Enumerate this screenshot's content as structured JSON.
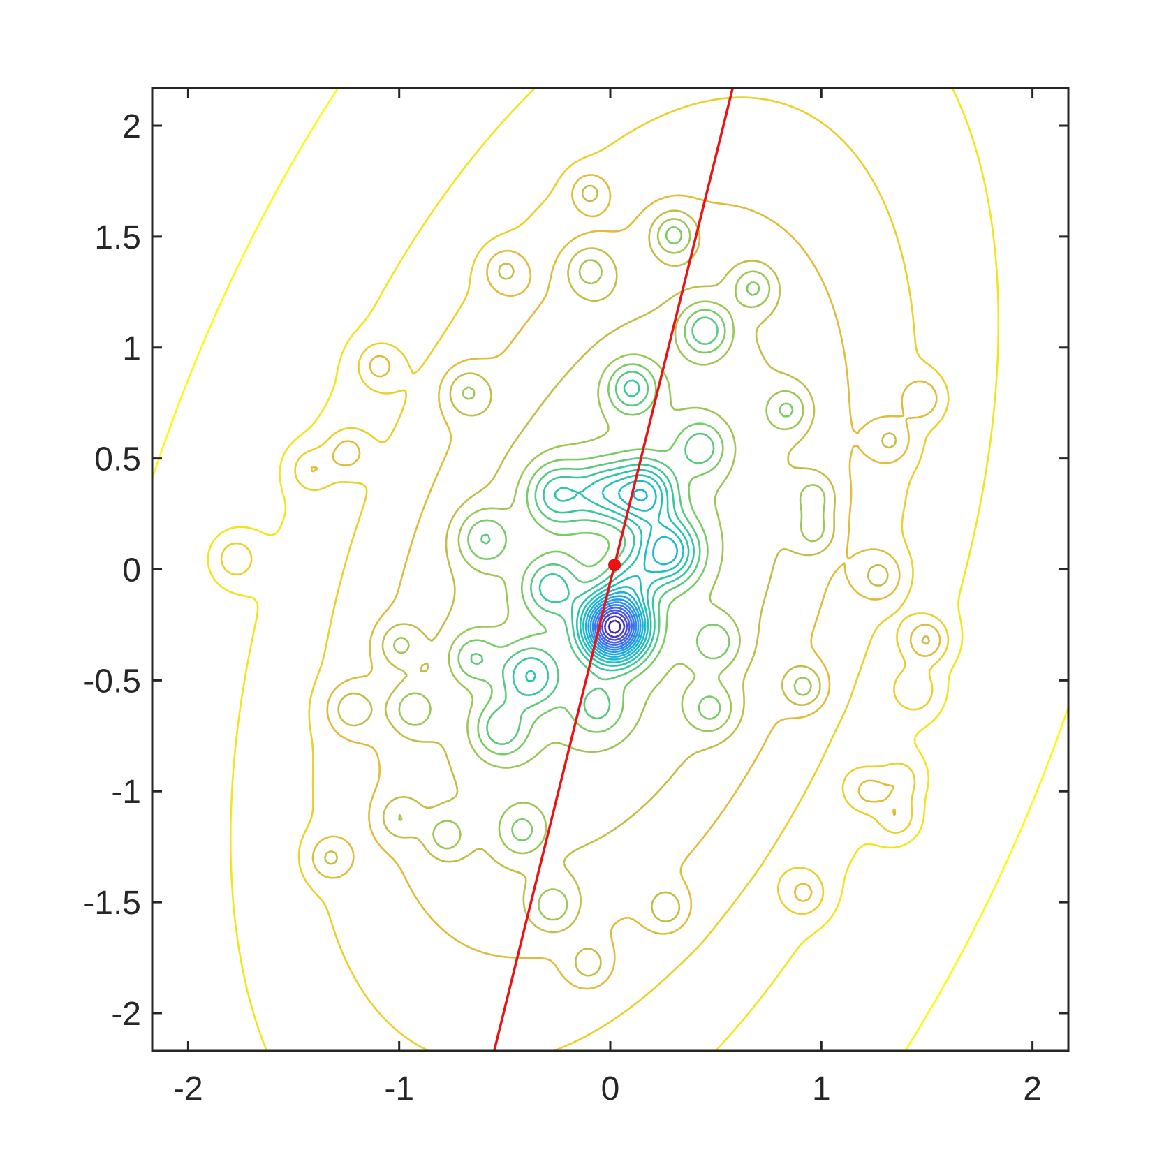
{
  "chart_data": {
    "type": "contour",
    "title": "",
    "xlabel": "",
    "ylabel": "",
    "xlim": [
      -2.17,
      2.17
    ],
    "ylim": [
      -2.17,
      2.17
    ],
    "xticks": [
      -2,
      -1,
      0,
      1,
      2
    ],
    "yticks": [
      -2,
      -1.5,
      -1,
      -0.5,
      0,
      0.5,
      1,
      1.5,
      2
    ],
    "xtick_labels": [
      "-2",
      "-1",
      "0",
      "1",
      "2"
    ],
    "ytick_labels": [
      "-2",
      "-1.5",
      "-1",
      "-0.5",
      "0",
      "0.5",
      "1",
      "1.5",
      "2"
    ],
    "grid": false,
    "colormap": "parula",
    "colors": {
      "low": "#3e26a8",
      "mid": "#2ab6a2",
      "high": "#f9fb0e",
      "line": "#ee1111"
    },
    "background_gaussian": {
      "center": [
        0.02,
        -0.05
      ],
      "sx": 1.05,
      "sy": 1.6,
      "rho": 0.42,
      "amp": 1.0
    },
    "wells": [
      [
        0.02,
        -0.26,
        2.8,
        0.1
      ],
      [
        0.16,
        0.34,
        1.1,
        0.1
      ],
      [
        0.27,
        0.08,
        1.1,
        0.1
      ],
      [
        -0.25,
        0.34,
        0.7,
        0.1
      ],
      [
        -0.03,
        0.35,
        0.6,
        0.09
      ],
      [
        -0.28,
        -0.08,
        0.6,
        0.09
      ],
      [
        -0.38,
        -0.48,
        0.7,
        0.1
      ],
      [
        -0.52,
        -0.72,
        0.55,
        0.09
      ],
      [
        -0.6,
        0.14,
        0.5,
        0.09
      ],
      [
        -0.65,
        -0.4,
        0.45,
        0.08
      ],
      [
        0.1,
        -0.05,
        0.5,
        0.08
      ],
      [
        0.43,
        0.55,
        0.5,
        0.08
      ],
      [
        -0.06,
        -0.62,
        0.4,
        0.09
      ],
      [
        0.5,
        -0.33,
        0.4,
        0.08
      ],
      [
        0.1,
        0.82,
        0.65,
        0.08
      ],
      [
        0.3,
        1.51,
        0.55,
        0.07
      ],
      [
        0.45,
        1.08,
        0.65,
        0.08
      ],
      [
        0.68,
        1.27,
        0.45,
        0.07
      ],
      [
        0.84,
        0.72,
        0.4,
        0.07
      ],
      [
        0.92,
        -0.53,
        0.45,
        0.07
      ],
      [
        0.48,
        -0.63,
        0.4,
        0.08
      ],
      [
        -0.1,
        1.7,
        0.35,
        0.06
      ],
      [
        -0.5,
        1.35,
        0.35,
        0.07
      ],
      [
        -0.1,
        1.35,
        0.4,
        0.08
      ],
      [
        -0.68,
        0.8,
        0.4,
        0.08
      ],
      [
        -1.1,
        0.92,
        0.35,
        0.07
      ],
      [
        -1.25,
        0.53,
        0.35,
        0.07
      ],
      [
        -1.42,
        0.45,
        0.32,
        0.07
      ],
      [
        -1.78,
        0.05,
        0.35,
        0.08
      ],
      [
        -1.0,
        -0.34,
        0.35,
        0.07
      ],
      [
        -1.23,
        -0.63,
        0.38,
        0.08
      ],
      [
        -0.94,
        -0.63,
        0.38,
        0.08
      ],
      [
        -1.0,
        -1.12,
        0.32,
        0.07
      ],
      [
        -0.78,
        -1.2,
        0.35,
        0.07
      ],
      [
        -0.42,
        -1.18,
        0.38,
        0.08
      ],
      [
        -1.33,
        -1.3,
        0.35,
        0.07
      ],
      [
        -0.27,
        -1.52,
        0.38,
        0.08
      ],
      [
        -0.1,
        -1.78,
        0.32,
        0.07
      ],
      [
        0.27,
        -1.53,
        0.35,
        0.07
      ],
      [
        0.92,
        -1.46,
        0.35,
        0.07
      ],
      [
        0.97,
        0.33,
        0.33,
        0.07
      ],
      [
        0.97,
        0.17,
        0.33,
        0.07
      ],
      [
        1.28,
        -0.03,
        0.38,
        0.08
      ],
      [
        1.5,
        -0.32,
        0.5,
        0.07
      ],
      [
        1.45,
        -0.55,
        0.32,
        0.07
      ],
      [
        1.48,
        0.77,
        0.35,
        0.07
      ],
      [
        1.33,
        0.58,
        0.32,
        0.07
      ],
      [
        1.22,
        -1.0,
        0.35,
        0.07
      ],
      [
        1.36,
        -1.12,
        0.35,
        0.07
      ],
      [
        1.38,
        -0.95,
        0.3,
        0.07
      ]
    ],
    "contour_levels": 22,
    "line": {
      "x": [
        -0.55,
        0.58
      ],
      "y": [
        -2.17,
        2.17
      ]
    },
    "point": {
      "x": 0.02,
      "y": 0.02
    }
  }
}
